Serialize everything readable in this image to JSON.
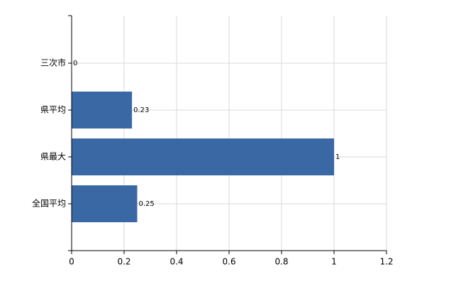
{
  "chart_data": {
    "type": "bar",
    "orientation": "horizontal",
    "categories": [
      "三次市",
      "県平均",
      "県最大",
      "全国平均"
    ],
    "values": [
      0,
      0.23,
      1,
      0.25
    ],
    "color": "#3a68a4",
    "xlim": [
      0,
      1.2
    ],
    "xticks": [
      0,
      0.2,
      0.4,
      0.6,
      0.8,
      1,
      1.2
    ],
    "grid": true
  }
}
